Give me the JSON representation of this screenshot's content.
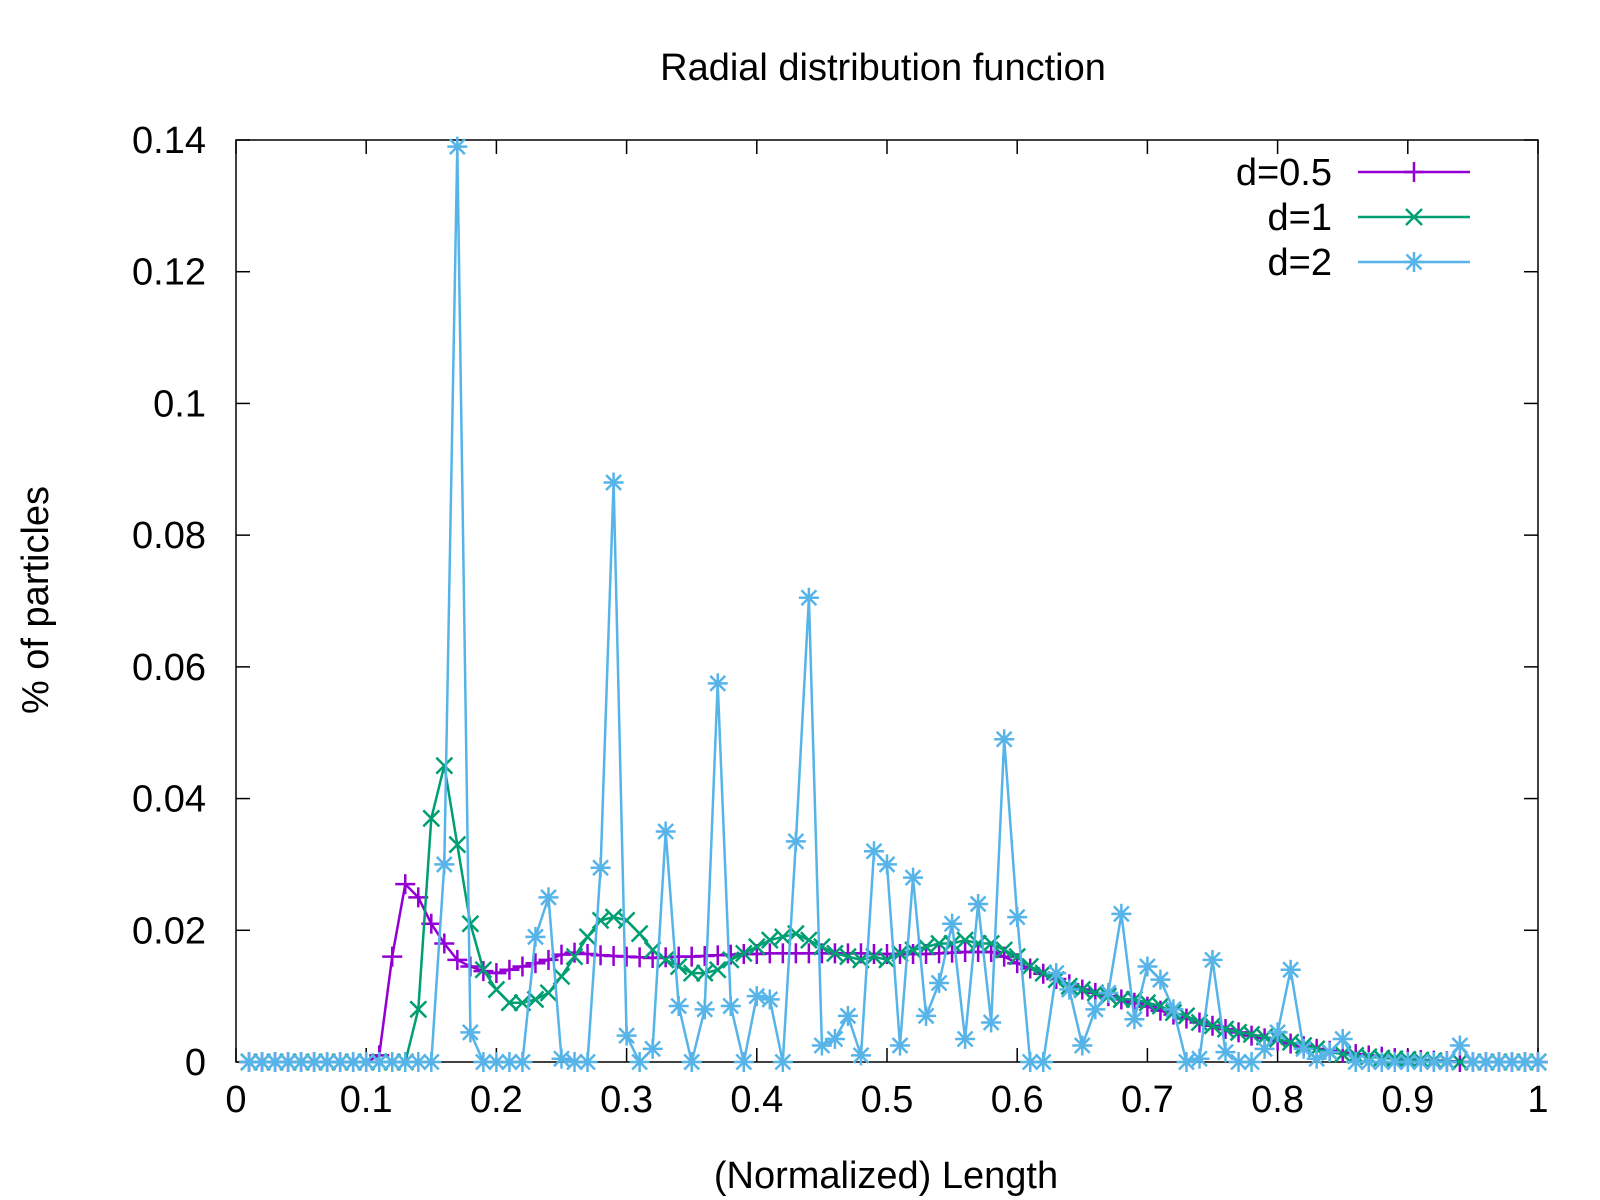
{
  "chart_data": {
    "type": "line",
    "title": "Radial distribution function",
    "xlabel": "(Normalized) Length",
    "ylabel": "% of particles",
    "xlim": [
      0,
      1
    ],
    "ylim": [
      0,
      0.14
    ],
    "xticks": [
      0,
      0.1,
      0.2,
      0.3,
      0.4,
      0.5,
      0.6,
      0.7,
      0.8,
      0.9,
      1
    ],
    "xtick_labels": [
      "0",
      "0.1",
      "0.2",
      "0.3",
      "0.4",
      "0.5",
      "0.6",
      "0.7",
      "0.8",
      "0.9",
      "1"
    ],
    "yticks": [
      0,
      0.02,
      0.04,
      0.06,
      0.08,
      0.1,
      0.12,
      0.14
    ],
    "ytick_labels": [
      "0",
      "0.02",
      "0.04",
      "0.06",
      "0.08",
      "0.1",
      "0.12",
      "0.14"
    ],
    "grid": false,
    "legend": "top-right",
    "x": [
      0.01,
      0.02,
      0.03,
      0.04,
      0.05,
      0.06,
      0.07,
      0.08,
      0.09,
      0.1,
      0.11,
      0.12,
      0.13,
      0.14,
      0.15,
      0.16,
      0.17,
      0.18,
      0.19,
      0.2,
      0.21,
      0.22,
      0.23,
      0.24,
      0.25,
      0.26,
      0.27,
      0.28,
      0.29,
      0.3,
      0.31,
      0.32,
      0.33,
      0.34,
      0.35,
      0.36,
      0.37,
      0.38,
      0.39,
      0.4,
      0.41,
      0.42,
      0.43,
      0.44,
      0.45,
      0.46,
      0.47,
      0.48,
      0.49,
      0.5,
      0.51,
      0.52,
      0.53,
      0.54,
      0.55,
      0.56,
      0.57,
      0.58,
      0.59,
      0.6,
      0.61,
      0.62,
      0.63,
      0.64,
      0.65,
      0.66,
      0.67,
      0.68,
      0.69,
      0.7,
      0.71,
      0.72,
      0.73,
      0.74,
      0.75,
      0.76,
      0.77,
      0.78,
      0.79,
      0.8,
      0.81,
      0.82,
      0.83,
      0.84,
      0.85,
      0.86,
      0.87,
      0.88,
      0.89,
      0.9,
      0.91,
      0.92,
      0.93,
      0.94,
      0.95,
      0.96,
      0.97,
      0.98,
      0.99,
      1.0
    ],
    "series": [
      {
        "name": "d=0.5",
        "color": "#9400d3",
        "marker": "plus",
        "values": [
          0,
          0,
          0,
          0,
          0,
          0,
          0,
          0,
          0,
          0,
          0.001,
          0.016,
          0.027,
          0.025,
          0.021,
          0.018,
          0.0155,
          0.0145,
          0.0138,
          0.0135,
          0.014,
          0.0145,
          0.015,
          0.0155,
          0.0163,
          0.0166,
          0.0164,
          0.0162,
          0.0161,
          0.016,
          0.0159,
          0.0158,
          0.0159,
          0.016,
          0.016,
          0.0161,
          0.0162,
          0.0163,
          0.0164,
          0.0164,
          0.0165,
          0.0165,
          0.0165,
          0.0165,
          0.0165,
          0.0165,
          0.0165,
          0.0165,
          0.0164,
          0.0164,
          0.0164,
          0.0164,
          0.0164,
          0.0165,
          0.0166,
          0.0167,
          0.0167,
          0.0167,
          0.016,
          0.015,
          0.0142,
          0.0134,
          0.0126,
          0.0118,
          0.011,
          0.0105,
          0.01,
          0.0095,
          0.009,
          0.0084,
          0.0078,
          0.0072,
          0.0066,
          0.006,
          0.0055,
          0.005,
          0.0045,
          0.004,
          0.0036,
          0.0032,
          0.0028,
          0.0024,
          0.002,
          0.0017,
          0.0014,
          0.0012,
          0.001,
          0.0008,
          0.0006,
          0.0004,
          0.0003,
          0.0002,
          0.0001,
          0,
          0,
          0,
          0,
          0,
          0,
          0
        ]
      },
      {
        "name": "d=1",
        "color": "#009e73",
        "marker": "x",
        "values": [
          0,
          0,
          0,
          0,
          0,
          0,
          0,
          0,
          0,
          0,
          0,
          0,
          0,
          0.008,
          0.037,
          0.045,
          0.033,
          0.021,
          0.014,
          0.011,
          0.009,
          0.009,
          0.0095,
          0.0105,
          0.013,
          0.016,
          0.019,
          0.0215,
          0.022,
          0.0215,
          0.0195,
          0.017,
          0.0155,
          0.0145,
          0.0135,
          0.0135,
          0.014,
          0.0155,
          0.0165,
          0.0175,
          0.0185,
          0.019,
          0.0195,
          0.0185,
          0.0175,
          0.0165,
          0.016,
          0.0155,
          0.016,
          0.0155,
          0.0165,
          0.017,
          0.0175,
          0.018,
          0.018,
          0.0185,
          0.018,
          0.018,
          0.017,
          0.016,
          0.0145,
          0.0135,
          0.0125,
          0.0115,
          0.011,
          0.0105,
          0.01,
          0.0095,
          0.0095,
          0.009,
          0.0085,
          0.0075,
          0.007,
          0.006,
          0.0055,
          0.005,
          0.0045,
          0.0042,
          0.0038,
          0.0035,
          0.003,
          0.0025,
          0.002,
          0.0015,
          0.0012,
          0.001,
          0.0008,
          0.0006,
          0.0005,
          0.0004,
          0.0003,
          0.0002,
          0.0001,
          0,
          0,
          0,
          0,
          0,
          0,
          0
        ]
      },
      {
        "name": "d=2",
        "color": "#56b4e9",
        "marker": "star",
        "values": [
          0,
          0,
          0,
          0,
          0,
          0,
          0,
          0,
          0,
          0,
          0,
          0,
          0,
          0,
          0,
          0.03,
          0.139,
          0.0045,
          0,
          0,
          0,
          0,
          0.019,
          0.025,
          0.0005,
          0,
          0,
          0.0295,
          0.088,
          0.004,
          0,
          0.002,
          0.035,
          0.0085,
          0,
          0.008,
          0.0575,
          0.0085,
          0,
          0.01,
          0.0095,
          0,
          0.0335,
          0.0705,
          0.0025,
          0.0035,
          0.007,
          0.001,
          0.032,
          0.03,
          0.0025,
          0.028,
          0.007,
          0.012,
          0.021,
          0.0035,
          0.024,
          0.006,
          0.049,
          0.022,
          0,
          0,
          0.0135,
          0.011,
          0.0025,
          0.008,
          0.0105,
          0.0225,
          0.0065,
          0.0145,
          0.0125,
          0.008,
          0,
          0.0005,
          0.0155,
          0.0015,
          0,
          0,
          0.002,
          0.0045,
          0.014,
          0.002,
          0.0005,
          0.0015,
          0.0035,
          0,
          0,
          0,
          0,
          0,
          0,
          0,
          0,
          0.0025,
          0,
          0,
          0,
          0,
          0,
          0
        ]
      }
    ]
  }
}
